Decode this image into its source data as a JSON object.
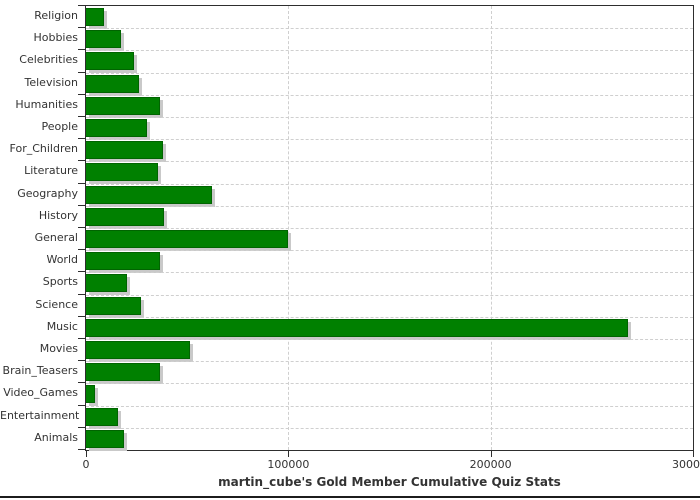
{
  "chart_data": {
    "type": "bar",
    "orientation": "horizontal",
    "title": "martin_cube's Gold Member Cumulative Quiz Stats",
    "categories": [
      "Religion",
      "Hobbies",
      "Celebrities",
      "Television",
      "Humanities",
      "People",
      "For_Children",
      "Literature",
      "Geography",
      "History",
      "General",
      "World",
      "Sports",
      "Science",
      "Music",
      "Movies",
      "Brain_Teasers",
      "Video_Games",
      "Entertainment",
      "Animals"
    ],
    "values": [
      8500,
      17000,
      23000,
      25500,
      36000,
      29500,
      37500,
      35000,
      62000,
      38000,
      99500,
      36000,
      20000,
      26500,
      267500,
      51000,
      36000,
      4000,
      15500,
      18500
    ],
    "xlabel": "",
    "ylabel": "",
    "xlim": [
      0,
      300000
    ],
    "x_ticks": [
      0,
      100000,
      200000,
      300000
    ],
    "x_tick_labels": [
      "0",
      "100000",
      "200000",
      "300000"
    ],
    "grid": "dashed horizontal and vertical",
    "legend": "none",
    "colors": {
      "bar_fill": "#008000",
      "bar_border": "#006400",
      "bar_shadow": "#c9c9c9",
      "grid": "#cfcfcf",
      "frame": "#2e2e2e",
      "text": "#333333",
      "background": "#ffffff",
      "bottom_edge_line": "#1c1c1c"
    }
  }
}
